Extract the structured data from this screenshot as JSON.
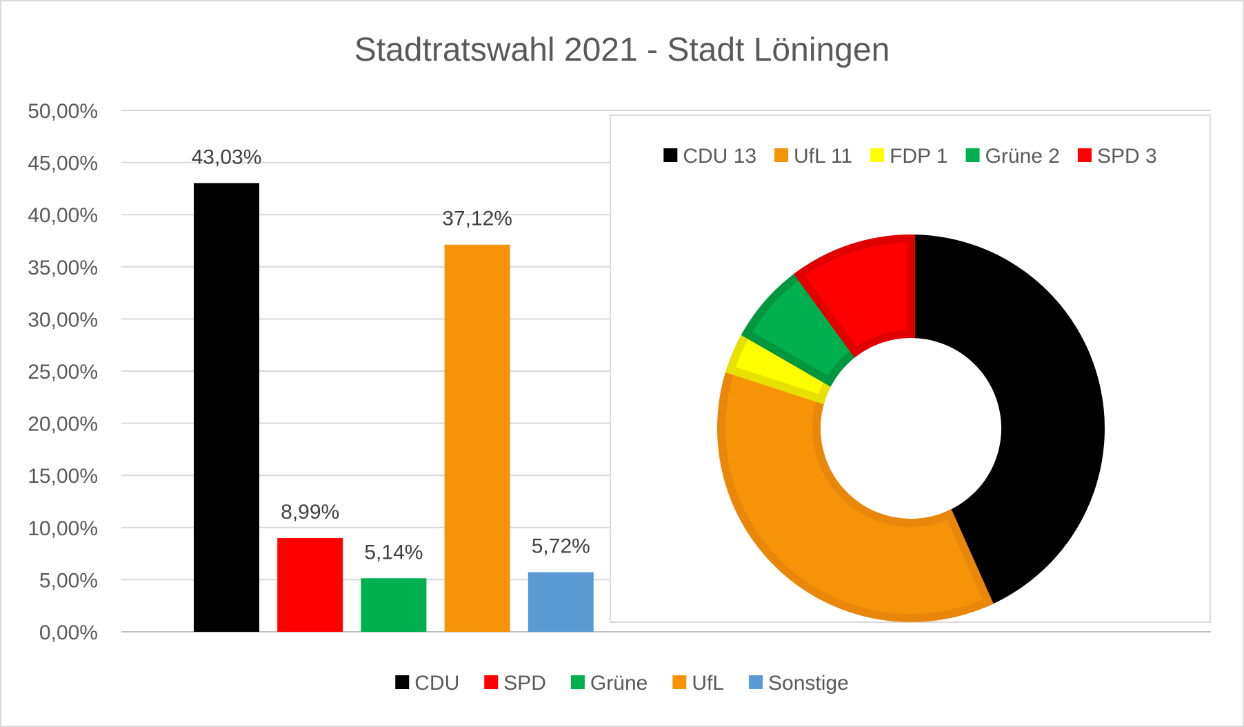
{
  "chart_data": [
    {
      "type": "bar",
      "title": "Stadtratswahl 2021 -  Stadt Löningen",
      "categories": [
        "CDU",
        "SPD",
        "Grüne",
        "UfL",
        "Sonstige"
      ],
      "values": [
        43.03,
        8.99,
        5.14,
        37.12,
        5.72
      ],
      "data_labels": [
        "43,03%",
        "8,99%",
        "5,14%",
        "37,12%",
        "5,72%"
      ],
      "colors": [
        "#000000",
        "#ff0000",
        "#00b050",
        "#f79306",
        "#5b9bd5"
      ],
      "y_ticks": [
        "0,00%",
        "5,00%",
        "10,00%",
        "15,00%",
        "20,00%",
        "25,00%",
        "30,00%",
        "35,00%",
        "40,00%",
        "45,00%",
        "50,00%"
      ],
      "ylim": [
        0,
        50
      ],
      "grid": true,
      "legend_position": "bottom",
      "legend": [
        "CDU",
        "SPD",
        "Grüne",
        "UfL",
        "Sonstige"
      ]
    },
    {
      "type": "pie",
      "subtype": "doughnut",
      "labels": [
        "CDU 13",
        "UfL 11",
        "FDP 1",
        "Grüne 2",
        "SPD 3"
      ],
      "values": [
        13,
        11,
        1,
        2,
        3
      ],
      "colors": [
        "#000000",
        "#f79306",
        "#ffff00",
        "#00b050",
        "#ff0000"
      ],
      "edge_colors": [
        "#000000",
        "#e8870a",
        "#e8e000",
        "#00973f",
        "#e00000"
      ],
      "legend_position": "top"
    }
  ]
}
